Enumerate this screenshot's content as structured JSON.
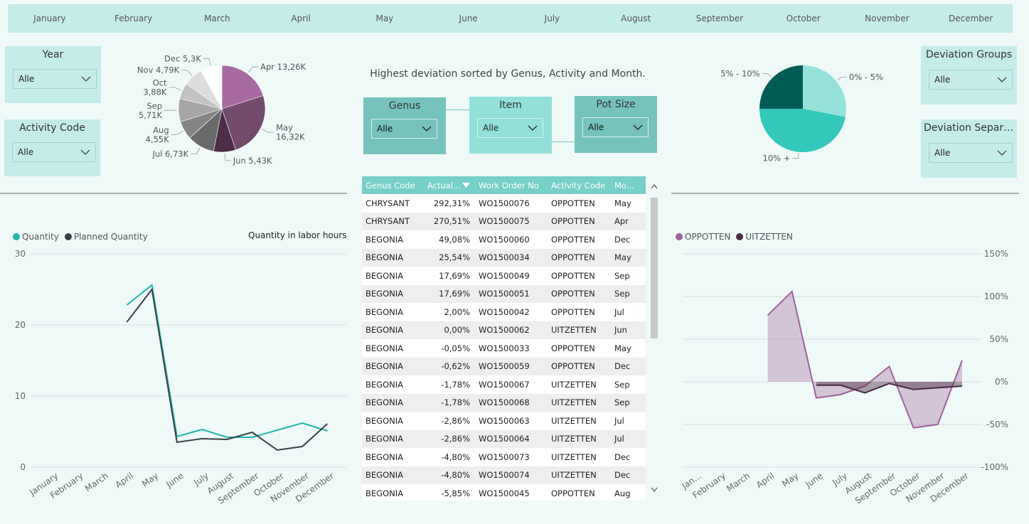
{
  "months": [
    "January",
    "February",
    "March",
    "April",
    "May",
    "June",
    "July",
    "August",
    "September",
    "October",
    "November",
    "December"
  ],
  "slicers": {
    "year": {
      "title": "Year",
      "value": "Alle"
    },
    "activity_code": {
      "title": "Activity Code",
      "value": "Alle"
    },
    "genus": {
      "title": "Genus",
      "value": "Alle"
    },
    "item": {
      "title": "Item",
      "value": "Alle"
    },
    "pot_size": {
      "title": "Pot Size",
      "value": "Alle"
    },
    "deviation_groups": {
      "title": "Deviation Groups",
      "value": "Alle"
    },
    "deviation_separation": {
      "title": "Deviation Separati...",
      "value": "Alle"
    }
  },
  "headline": "Highest deviation sorted by Genus, Activity and Month.",
  "colors": {
    "accent": "#1fb5aa",
    "dark": "#3a3f45",
    "purple": "#a0609a",
    "plum": "#4b2a44",
    "header_teal": "#76cfc8",
    "panel": "#c4ece9"
  },
  "pie_month": {
    "chart_data": {
      "type": "pie",
      "slices": [
        {
          "label": "Apr 13,26K",
          "value": 13.26,
          "color": "#a66aa0"
        },
        {
          "label": "May 16,32K",
          "value": 16.32,
          "color": "#724a6c"
        },
        {
          "label": "Jun 5,43K",
          "value": 5.43,
          "color": "#4d2d47"
        },
        {
          "label": "Jul 6,73K",
          "value": 6.73,
          "color": "#6a6a6a"
        },
        {
          "label": "Aug 4,55K",
          "value": 4.55,
          "color": "#858585"
        },
        {
          "label": "Sep 5,71K",
          "value": 5.71,
          "color": "#a6a6a6"
        },
        {
          "label": "Oct 3,88K",
          "value": 3.88,
          "color": "#c2c2c2"
        },
        {
          "label": "Nov 4,79K",
          "value": 4.79,
          "color": "#dcdcdc"
        },
        {
          "label": "Dec 5,3K",
          "value": 5.3,
          "color": "#ffffff"
        }
      ],
      "label_lines": {
        "Apr 13,26K": [
          "Apr 13,26K"
        ],
        "May 16,32K": [
          "May",
          "16,32K"
        ],
        "Jun 5,43K": [
          "Jun 5,43K"
        ],
        "Jul 6,73K": [
          "Jul 6,73K"
        ],
        "Aug 4,55K": [
          "Aug",
          "4,55K"
        ],
        "Sep 5,71K": [
          "Sep",
          "5,71K"
        ],
        "Oct 3,88K": [
          "Oct",
          "3,88K"
        ],
        "Nov 4,79K": [
          "Nov 4,79K"
        ],
        "Dec 5,3K": [
          "Dec 5,3K"
        ]
      }
    }
  },
  "pie_dev": {
    "chart_data": {
      "type": "pie",
      "slices": [
        {
          "label": "0% - 5%",
          "value": 28,
          "color": "#96e2da"
        },
        {
          "label": "10% +",
          "value": 47,
          "color": "#34c7bb"
        },
        {
          "label": "5% - 10%",
          "value": 25,
          "color": "#005c55"
        }
      ]
    }
  },
  "table": {
    "columns": [
      "Genus Code",
      "Actual...",
      "Work Order No",
      "Activity Code",
      "Mo..."
    ],
    "rows": [
      [
        "CHRYSANT",
        "292,31%",
        "WO1500076",
        "OPPOTTEN",
        "May"
      ],
      [
        "CHRYSANT",
        "270,51%",
        "WO1500075",
        "OPPOTTEN",
        "Apr"
      ],
      [
        "BEGONIA",
        "49,08%",
        "WO1500060",
        "OPPOTTEN",
        "Dec"
      ],
      [
        "BEGONIA",
        "25,54%",
        "WO1500034",
        "OPPOTTEN",
        "May"
      ],
      [
        "BEGONIA",
        "17,69%",
        "WO1500049",
        "OPPOTTEN",
        "Sep"
      ],
      [
        "BEGONIA",
        "17,69%",
        "WO1500051",
        "OPPOTTEN",
        "Sep"
      ],
      [
        "BEGONIA",
        "2,00%",
        "WO1500042",
        "OPPOTTEN",
        "Jul"
      ],
      [
        "BEGONIA",
        "0,00%",
        "WO1500062",
        "UITZETTEN",
        "Jun"
      ],
      [
        "BEGONIA",
        "-0,05%",
        "WO1500033",
        "OPPOTTEN",
        "May"
      ],
      [
        "BEGONIA",
        "-0,62%",
        "WO1500059",
        "OPPOTTEN",
        "Dec"
      ],
      [
        "BEGONIA",
        "-1,78%",
        "WO1500067",
        "UITZETTEN",
        "Sep"
      ],
      [
        "BEGONIA",
        "-1,78%",
        "WO1500068",
        "UITZETTEN",
        "Sep"
      ],
      [
        "BEGONIA",
        "-2,86%",
        "WO1500063",
        "UITZETTEN",
        "Jul"
      ],
      [
        "BEGONIA",
        "-2,86%",
        "WO1500064",
        "UITZETTEN",
        "Jul"
      ],
      [
        "BEGONIA",
        "-4,80%",
        "WO1500073",
        "UITZETTEN",
        "Dec"
      ],
      [
        "BEGONIA",
        "-4,80%",
        "WO1500074",
        "UITZETTEN",
        "Dec"
      ],
      [
        "BEGONIA",
        "-5,85%",
        "WO1500045",
        "OPPOTTEN",
        "Aug"
      ]
    ]
  },
  "qty_chart": {
    "title": "Quantity in labor hours",
    "chart_data": {
      "type": "line",
      "x": [
        "January",
        "February",
        "March",
        "April",
        "May",
        "June",
        "July",
        "August",
        "September",
        "October",
        "November",
        "December"
      ],
      "ylim": [
        0,
        30
      ],
      "yticks": [
        0,
        10,
        20,
        30
      ],
      "grid": true,
      "legend": "top-left",
      "series": [
        {
          "name": "Quantity",
          "color": "#1fb5aa",
          "values": [
            null,
            null,
            null,
            22.8,
            25.6,
            4.3,
            5.3,
            4.2,
            4.2,
            5.2,
            6.2,
            5.1
          ]
        },
        {
          "name": "Planned Quantity",
          "color": "#3a3f45",
          "values": [
            null,
            null,
            null,
            20.4,
            25.0,
            3.5,
            4.0,
            3.9,
            4.9,
            2.4,
            2.9,
            6.1
          ]
        }
      ]
    }
  },
  "dev_chart": {
    "chart_data": {
      "type": "area",
      "x": [
        "Jan...",
        "February",
        "March",
        "April",
        "May",
        "June",
        "July",
        "August",
        "September",
        "October",
        "November",
        "December"
      ],
      "ylim": [
        -100,
        150
      ],
      "yticks": [
        "150%",
        "100%",
        "50%",
        "0%",
        "-50%",
        "-100%"
      ],
      "ytick_values": [
        150,
        100,
        50,
        0,
        -50,
        -100
      ],
      "grid": true,
      "legend": "top-left",
      "series": [
        {
          "name": "OPPOTTEN",
          "color": "#a0609a",
          "values": [
            null,
            null,
            null,
            78,
            106,
            -19,
            -15,
            -5,
            18,
            -54,
            -50,
            25
          ]
        },
        {
          "name": "UITZETTEN",
          "color": "#4b2a44",
          "values": [
            null,
            null,
            null,
            null,
            null,
            -4,
            -4,
            -13,
            -2,
            -9,
            -7,
            -5
          ]
        }
      ]
    }
  }
}
